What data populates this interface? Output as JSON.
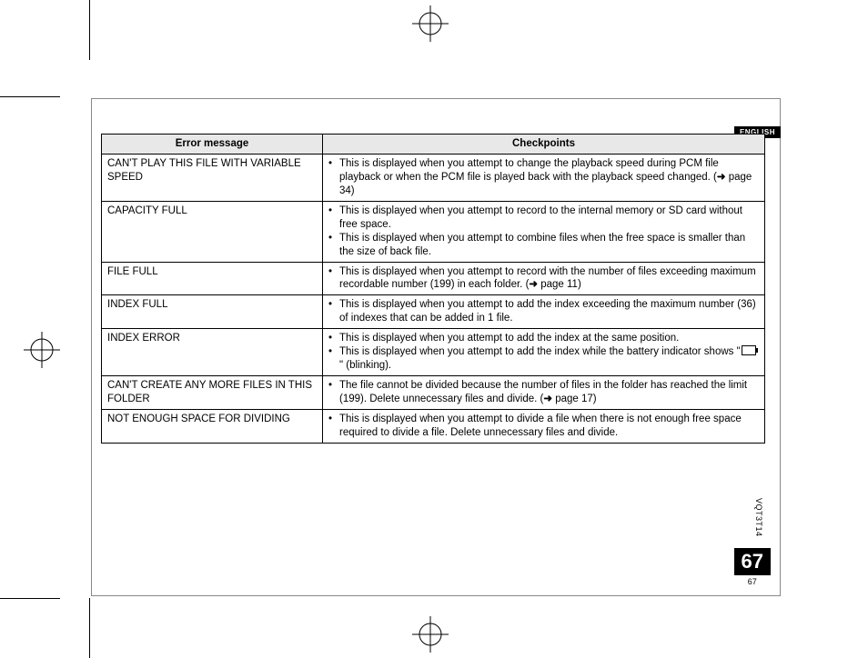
{
  "page": {
    "language_tab": "ENGLISH",
    "page_number_large": "67",
    "page_number_small": "67",
    "document_code": "VQT3T14"
  },
  "table": {
    "headers": {
      "col1": "Error message",
      "col2": "Checkpoints"
    },
    "rows": [
      {
        "error": "CAN'T PLAY THIS FILE WITH VARIABLE SPEED",
        "checkpoints": [
          "This is displayed when you attempt to change the playback speed during PCM file playback or when the PCM file is played back with the playback speed changed. (➜ page 34)"
        ]
      },
      {
        "error": "CAPACITY FULL",
        "checkpoints": [
          "This is displayed when you attempt to record to the internal memory or SD card without free space.",
          "This is displayed when you attempt to combine files when the free space is smaller than the size of back file."
        ]
      },
      {
        "error": "FILE FULL",
        "checkpoints": [
          "This is displayed when you attempt to record with the number of files exceeding maximum recordable number (199) in each folder. (➜ page 11)"
        ]
      },
      {
        "error": "INDEX FULL",
        "checkpoints": [
          "This is displayed when you attempt to add the index exceeding the maximum number (36) of indexes that can be added in 1 file."
        ]
      },
      {
        "error": "INDEX ERROR",
        "checkpoints": [
          "This is displayed when you attempt to add the index at the same position.",
          "This is displayed when you attempt to add the index while the battery indicator shows \"[battery]\" (blinking)."
        ]
      },
      {
        "error": "CAN'T CREATE ANY MORE FILES IN THIS FOLDER",
        "checkpoints": [
          "The file cannot be divided because the number of files in the folder has reached the limit (199). Delete unnecessary files and divide. (➜ page 17)"
        ]
      },
      {
        "error": "NOT ENOUGH SPACE FOR DIVIDING",
        "checkpoints": [
          "This is displayed when you attempt to divide a file when there is not enough free space required to divide a file. Delete unnecessary files and divide."
        ]
      }
    ]
  },
  "cropmarks": {
    "line_color": "#000000"
  }
}
